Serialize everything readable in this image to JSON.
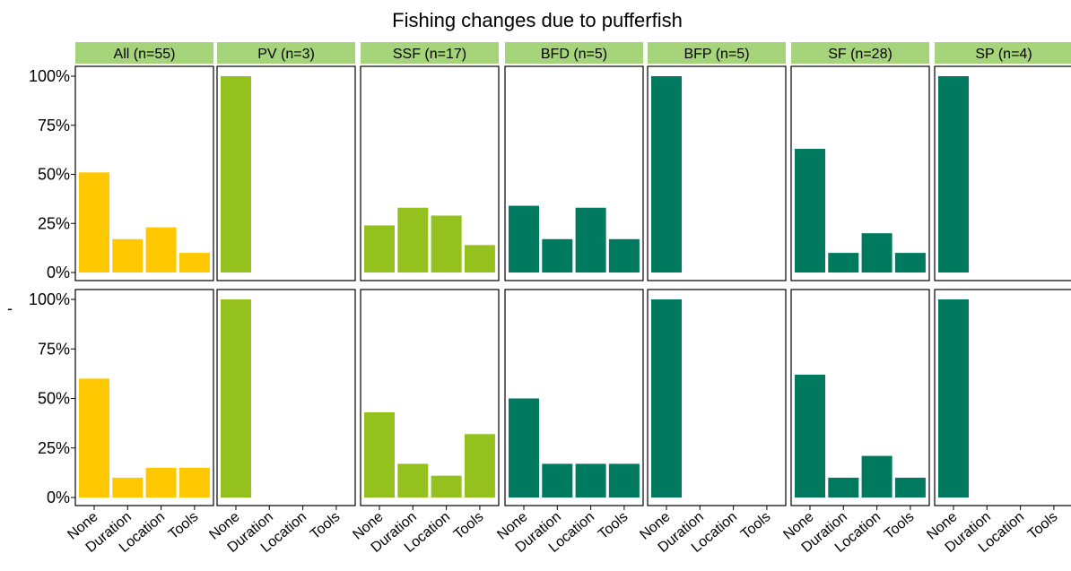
{
  "chart_data": {
    "type": "bar",
    "title": "Fishing changes due to pufferfish",
    "ylabel": "-",
    "xlabel": "",
    "y_tick_labels": [
      "0%",
      "25%",
      "50%",
      "75%",
      "100%"
    ],
    "ylim": [
      0,
      1
    ],
    "categories": [
      "None",
      "Duration",
      "Location",
      "Tools"
    ],
    "facets": [
      {
        "label": "All (n=55)",
        "color": "#FFC800"
      },
      {
        "label": "PV (n=3)",
        "color": "#95C11F"
      },
      {
        "label": "SSF (n=17)",
        "color": "#95C11F"
      },
      {
        "label": "BFD (n=5)",
        "color": "#007A5E"
      },
      {
        "label": "BFP (n=5)",
        "color": "#007A5E"
      },
      {
        "label": "SF (n=28)",
        "color": "#007A5E"
      },
      {
        "label": "SP (n=4)",
        "color": "#007A5E"
      }
    ],
    "rows": [
      [
        [
          0.51,
          0.17,
          0.23,
          0.1
        ],
        [
          1.0,
          0,
          0,
          0
        ],
        [
          0.24,
          0.33,
          0.29,
          0.14
        ],
        [
          0.34,
          0.17,
          0.33,
          0.17
        ],
        [
          1.0,
          0,
          0,
          0
        ],
        [
          0.63,
          0.1,
          0.2,
          0.1
        ],
        [
          1.0,
          0,
          0,
          0
        ]
      ],
      [
        [
          0.6,
          0.1,
          0.15,
          0.15
        ],
        [
          1.0,
          0,
          0,
          0
        ],
        [
          0.43,
          0.17,
          0.11,
          0.32
        ],
        [
          0.5,
          0.17,
          0.17,
          0.17
        ],
        [
          1.0,
          0,
          0,
          0
        ],
        [
          0.62,
          0.1,
          0.21,
          0.1
        ],
        [
          1.0,
          0,
          0,
          0
        ]
      ]
    ],
    "strip_color": "#A5D47A",
    "grid": false,
    "legend": "none"
  }
}
